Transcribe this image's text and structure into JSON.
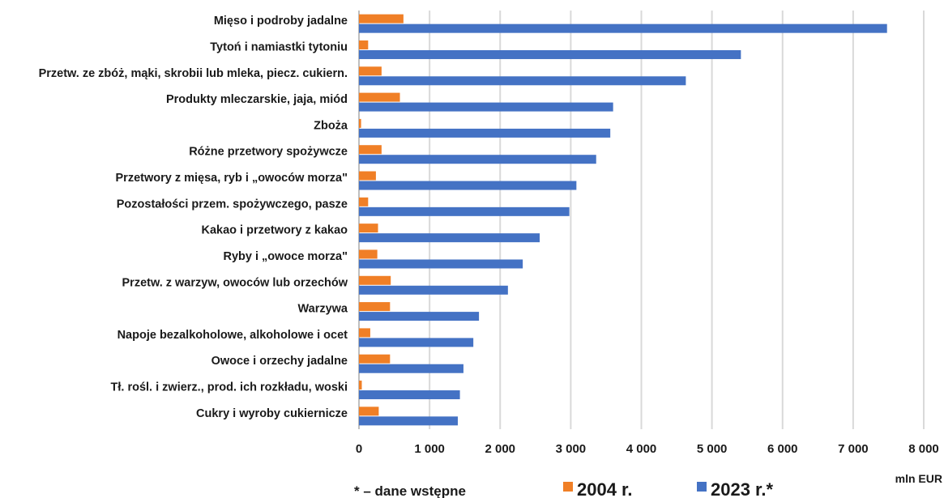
{
  "chart_data": {
    "type": "bar",
    "orientation": "horizontal",
    "categories": [
      "Mięso i podroby jadalne",
      "Tytoń i namiastki tytoniu",
      "Przetw. ze zbóż, mąki, skrobii lub mleka, piecz. cukiern.",
      "Produkty mleczarskie, jaja, miód",
      "Zboża",
      "Różne przetwory spożywcze",
      "Przetwory z mięsa, ryb i „owoców morza\"",
      "Pozostałości przem. spożywczego, pasze",
      "Kakao i przetwory z kakao",
      "Ryby i „owoce morza\"",
      "Przetw. z warzyw, owoców lub orzechów",
      "Warzywa",
      "Napoje bezalkoholowe, alkoholowe i ocet",
      "Owoce i orzechy jadalne",
      "Tł. rośl. i zwierz., prod. ich rozkładu, woski",
      "Cukry i wyroby cukiernicze"
    ],
    "series": [
      {
        "name": "2004 r.",
        "color": "#f07f26",
        "values": [
          630,
          130,
          320,
          580,
          30,
          320,
          240,
          130,
          270,
          260,
          450,
          440,
          160,
          440,
          40,
          280
        ]
      },
      {
        "name": "2023 r.*",
        "color": "#4472c4",
        "values": [
          7480,
          5410,
          4630,
          3600,
          3560,
          3360,
          3080,
          2980,
          2560,
          2320,
          2110,
          1700,
          1620,
          1480,
          1430,
          1400
        ]
      }
    ],
    "xlim": [
      0,
      8000
    ],
    "xticks": [
      0,
      1000,
      2000,
      3000,
      4000,
      5000,
      6000,
      7000,
      8000
    ],
    "xtick_labels": [
      "0",
      "1 000",
      "2 000",
      "3 000",
      "4 000",
      "5 000",
      "6 000",
      "7 000",
      "8 000"
    ],
    "xlabel": "mln EUR",
    "grid": "vertical",
    "legend_position": "bottom",
    "note": "* – dane wstępne"
  }
}
